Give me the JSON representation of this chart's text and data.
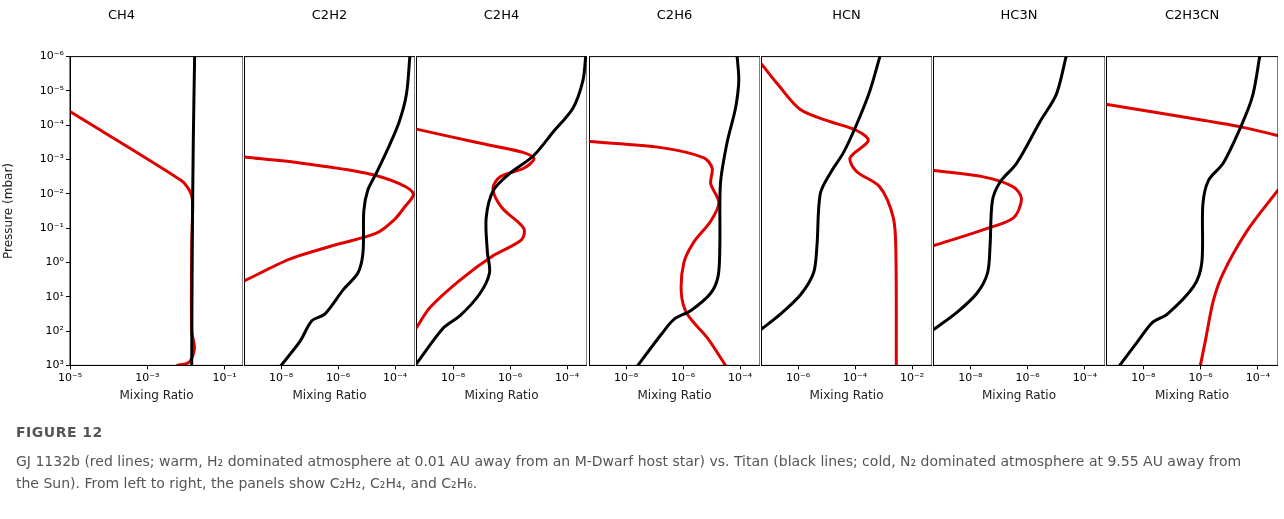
{
  "chart_data": [
    {
      "type": "line",
      "title": "CH4",
      "xlabel": "Mixing Ratio",
      "ylabel": "Pressure (mbar)",
      "log": "xy",
      "grid": false,
      "xlim": [
        1e-05,
        0.3
      ],
      "xticks": [
        {
          "value": 1e-05,
          "label": "10⁻⁵"
        },
        {
          "value": 0.001,
          "label": "10⁻³"
        },
        {
          "value": 0.1,
          "label": "10⁻¹"
        }
      ],
      "ylim": [
        1000,
        1e-06
      ],
      "yticks": [
        {
          "value": 1e-06,
          "label": "10⁻⁶"
        },
        {
          "value": 1e-05,
          "label": "10⁻⁵"
        },
        {
          "value": 0.0001,
          "label": "10⁻⁴"
        },
        {
          "value": 0.001,
          "label": "10⁻³"
        },
        {
          "value": 0.01,
          "label": "10⁻²"
        },
        {
          "value": 0.1,
          "label": "10⁻¹"
        },
        {
          "value": 1,
          "label": "10⁰"
        },
        {
          "value": 10,
          "label": "10¹"
        },
        {
          "value": 100,
          "label": "10²"
        },
        {
          "value": 1000,
          "label": "10³"
        }
      ],
      "annotations": [
        "FIGURE 12",
        "GJ 1132b (red lines; warm, H₂ dominated atmosphere at 0.01 AU away from an M-Dwarf host star) vs. Titan (black lines; cold, N₂ dominated atmosphere at 9.55 AU away from the Sun). From left to right, the panels show C₂H₂, C₂H₄, and C₂H₆."
      ],
      "series": [
        {
          "color": "#000000",
          "x": [
            0.0168,
            0.0155,
            0.0146,
            0.0141
          ],
          "values": [
            1e-06,
            0.000316,
            0.316,
            1000
          ]
        },
        {
          "color": "#e00000",
          "x": [
            1e-05,
            0.0074,
            0.0123,
            0.0148,
            0.0141,
            0.0141,
            0.0166,
            0.0123,
            0.006
          ],
          "values": [
            4e-05,
            0.004,
            0.0079,
            0.0158,
            0.316,
            100,
            316,
            794,
            1000
          ]
        }
      ]
    },
    {
      "type": "line",
      "title": "C2H2",
      "xlabel": "Mixing Ratio",
      "log": "xy",
      "grid": false,
      "tick_labels": "x",
      "xlim": [
        5e-10,
        0.0005
      ],
      "xticks": [
        {
          "value": 1e-08,
          "label": "10⁻⁸"
        },
        {
          "value": 1e-06,
          "label": "10⁻⁶"
        },
        {
          "value": 0.0001,
          "label": "10⁻⁴"
        }
      ],
      "ylim": [
        1000,
        1e-06
      ],
      "yticks": [
        {
          "value": 1e-06,
          "label": null
        },
        {
          "value": 1e-05,
          "label": null
        },
        {
          "value": 0.0001,
          "label": null
        },
        {
          "value": 0.001,
          "label": null
        },
        {
          "value": 0.01,
          "label": null
        },
        {
          "value": 0.1,
          "label": null
        },
        {
          "value": 1,
          "label": null
        },
        {
          "value": 10,
          "label": null
        },
        {
          "value": 100,
          "label": null
        },
        {
          "value": 1000,
          "label": null
        }
      ],
      "series": [
        {
          "color": "#000000",
          "x": [
            1e-08,
            4.6e-08,
            1.2e-07,
            3.4e-07,
            1.5e-06,
            5e-06,
            7.5e-06,
            8e-06,
            1.1e-05,
            2.2e-05,
            5.5e-05,
            0.00014,
            0.00025,
            0.00033
          ],
          "values": [
            1000,
            200,
            50,
            32,
            6.3,
            2,
            0.5,
            0.0316,
            0.0079,
            0.0025,
            0.0005,
            7.9e-05,
            1.26e-05,
            1e-06
          ]
        },
        {
          "color": "#e00000",
          "x": [
            5e-10,
            4.6e-08,
            9.8e-06,
            0.00014,
            0.00044,
            0.00021,
            9.5e-05,
            2.2e-05,
            6.7e-07,
            2e-08,
            5e-10
          ],
          "values": [
            0.00085,
            0.00126,
            0.0025,
            0.005,
            0.01,
            0.025,
            0.056,
            0.14,
            0.32,
            0.8,
            3.5
          ]
        }
      ]
    },
    {
      "type": "line",
      "title": "C2H4",
      "xlabel": "Mixing Ratio",
      "log": "xy",
      "grid": false,
      "tick_labels": "x",
      "xlim": [
        5e-10,
        0.0005
      ],
      "xticks": [
        {
          "value": 1e-08,
          "label": "10⁻⁸"
        },
        {
          "value": 1e-06,
          "label": "10⁻⁶"
        },
        {
          "value": 0.0001,
          "label": "10⁻⁴"
        }
      ],
      "ylim": [
        1000,
        1e-06
      ],
      "yticks": [
        {
          "value": 1e-06,
          "label": null
        },
        {
          "value": 1e-05,
          "label": null
        },
        {
          "value": 0.0001,
          "label": null
        },
        {
          "value": 0.001,
          "label": null
        },
        {
          "value": 0.01,
          "label": null
        },
        {
          "value": 0.1,
          "label": null
        },
        {
          "value": 1,
          "label": null
        },
        {
          "value": 10,
          "label": null
        },
        {
          "value": 100,
          "label": null
        },
        {
          "value": 1000,
          "label": null
        }
      ],
      "series": [
        {
          "color": "#000000",
          "x": [
            5.2e-10,
            4.7e-09,
            1.8e-08,
            8.9e-08,
            1.9e-07,
            1.6e-07,
            1.45e-07,
            2.6e-07,
            1e-06,
            6.5e-06,
            3.2e-05,
            0.00016,
            0.00036,
            0.00045
          ],
          "values": [
            890,
            79,
            35,
            7.9,
            2,
            0.5,
            0.05,
            0.0079,
            0.0025,
            0.00079,
            0.00016,
            3.2e-05,
            5e-06,
            1e-06
          ]
        },
        {
          "color": "#e00000",
          "x": [
            5.2e-10,
            6.9e-08,
            3e-06,
            6.9e-06,
            3e-06,
            4.5e-07,
            2.5e-07,
            5.1e-07,
            3e-06,
            2.5e-06,
            2.6e-07,
            1.8e-08,
            1.6e-09,
            5.2e-10
          ],
          "values": [
            0.00013,
            0.00032,
            0.00063,
            0.00095,
            0.0018,
            0.0032,
            0.007,
            0.025,
            0.1,
            0.22,
            0.63,
            3.2,
            20,
            79
          ]
        }
      ]
    },
    {
      "type": "line",
      "title": "C2H6",
      "xlabel": "Mixing Ratio",
      "log": "xy",
      "grid": false,
      "tick_labels": "x",
      "xlim": [
        5e-10,
        0.0005
      ],
      "xticks": [
        {
          "value": 1e-08,
          "label": "10⁻⁸"
        },
        {
          "value": 1e-06,
          "label": "10⁻⁶"
        },
        {
          "value": 0.0001,
          "label": "10⁻⁴"
        }
      ],
      "ylim": [
        1000,
        1e-06
      ],
      "yticks": [
        {
          "value": 1e-06,
          "label": null
        },
        {
          "value": 1e-05,
          "label": null
        },
        {
          "value": 0.0001,
          "label": null
        },
        {
          "value": 0.001,
          "label": null
        },
        {
          "value": 0.01,
          "label": null
        },
        {
          "value": 0.1,
          "label": null
        },
        {
          "value": 1,
          "label": null
        },
        {
          "value": 10,
          "label": null
        },
        {
          "value": 100,
          "label": null
        },
        {
          "value": 1000,
          "label": null
        }
      ],
      "series": [
        {
          "color": "#000000",
          "x": [
            2.6e-08,
            1.7e-07,
            4.9e-07,
            1.9e-06,
            9.3e-06,
            1.7e-05,
            1.95e-05,
            2.05e-05,
            3.5e-05,
            6.9e-05,
            9e-05,
            7.9e-05
          ],
          "values": [
            1000,
            126,
            45,
            25,
            7.9,
            2.5,
            0.32,
            0.005,
            0.00032,
            3.2e-05,
            5e-06,
            1e-06
          ]
        },
        {
          "color": "#e00000",
          "x": [
            5.5e-10,
            1.7e-07,
            5.4e-06,
            1.05e-05,
            9.3e-06,
            1.8e-05,
            9.3e-06,
            2.4e-06,
            1.07e-06,
            8.7e-07,
            1.4e-06,
            7.1e-06,
            3.1e-05
          ],
          "values": [
            0.0003,
            0.00045,
            0.00089,
            0.0018,
            0.005,
            0.018,
            0.063,
            0.25,
            1,
            7.9,
            32,
            158,
            1000
          ]
        }
      ]
    },
    {
      "type": "line",
      "title": "HCN",
      "xlabel": "Mixing Ratio",
      "log": "xy",
      "grid": false,
      "tick_labels": "x",
      "xlim": [
        5e-08,
        0.05
      ],
      "xticks": [
        {
          "value": 1e-06,
          "label": "10⁻⁶"
        },
        {
          "value": 0.0001,
          "label": "10⁻⁴"
        },
        {
          "value": 0.01,
          "label": "10⁻²"
        }
      ],
      "ylim": [
        1000,
        1e-06
      ],
      "yticks": [
        {
          "value": 1e-06,
          "label": null
        },
        {
          "value": 1e-05,
          "label": null
        },
        {
          "value": 0.0001,
          "label": null
        },
        {
          "value": 0.001,
          "label": null
        },
        {
          "value": 0.01,
          "label": null
        },
        {
          "value": 0.1,
          "label": null
        },
        {
          "value": 1,
          "label": null
        },
        {
          "value": 10,
          "label": null
        },
        {
          "value": 100,
          "label": null
        },
        {
          "value": 1000,
          "label": null
        }
      ],
      "series": [
        {
          "color": "#000000",
          "x": [
            5.1e-08,
            2.4e-07,
            1.2e-06,
            3.5e-06,
            4.6e-06,
            6e-06,
            1.35e-05,
            3.9e-05,
            0.00011,
            0.00033,
            0.00074
          ],
          "values": [
            89,
            32,
            8.9,
            2,
            0.32,
            0.01,
            0.0025,
            0.00063,
            0.0001,
            1e-05,
            1e-06
          ]
        },
        {
          "color": "#e00000",
          "x": [
            5.1e-08,
            1.9e-07,
            1.2e-06,
            1.35e-05,
            0.00011,
            0.00029,
            6.7e-05,
            0.00011,
            0.00074,
            0.0022,
            0.0027,
            0.0028
          ],
          "values": [
            1.6e-06,
            6.3e-06,
            3.5e-05,
            7.9e-05,
            0.00014,
            0.00028,
            0.00089,
            0.0022,
            0.0063,
            0.05,
            0.5,
            1000
          ]
        }
      ]
    },
    {
      "type": "line",
      "title": "HC3N",
      "xlabel": "Mixing Ratio",
      "log": "xy",
      "grid": false,
      "tick_labels": "x",
      "xlim": [
        5e-10,
        0.0005
      ],
      "xticks": [
        {
          "value": 1e-08,
          "label": "10⁻⁸"
        },
        {
          "value": 1e-06,
          "label": "10⁻⁶"
        },
        {
          "value": 0.0001,
          "label": "10⁻⁴"
        }
      ],
      "ylim": [
        1000,
        1e-06
      ],
      "yticks": [
        {
          "value": 1e-06,
          "label": null
        },
        {
          "value": 1e-05,
          "label": null
        },
        {
          "value": 0.0001,
          "label": null
        },
        {
          "value": 0.001,
          "label": null
        },
        {
          "value": 0.01,
          "label": null
        },
        {
          "value": 0.1,
          "label": null
        },
        {
          "value": 1,
          "label": null
        },
        {
          "value": 10,
          "label": null
        },
        {
          "value": 100,
          "label": null
        },
        {
          "value": 1000,
          "label": null
        }
      ],
      "series": [
        {
          "color": "#000000",
          "x": [
            5.4e-10,
            3.5e-09,
            1.7e-08,
            4e-08,
            4.9e-08,
            5.9e-08,
            1.1e-07,
            4.2e-07,
            2.7e-06,
            1e-05,
            2.2e-05
          ],
          "values": [
            89,
            28,
            7.9,
            2,
            0.32,
            0.0158,
            0.0045,
            0.00126,
            7.9e-05,
            1.26e-05,
            1e-06
          ]
        },
        {
          "color": "#e00000",
          "x": [
            5.4e-10,
            2.9e-08,
            3.2e-07,
            6.1e-07,
            3.2e-07,
            2.9e-08,
            5.4e-10
          ],
          "values": [
            0.0021,
            0.0032,
            0.0063,
            0.014,
            0.05,
            0.11,
            0.32
          ]
        }
      ]
    },
    {
      "type": "line",
      "title": "C2H3CN",
      "xlabel": "Mixing Ratio",
      "log": "xy",
      "grid": false,
      "tick_labels": "x",
      "xlim": [
        5e-10,
        0.0005
      ],
      "xticks": [
        {
          "value": 1e-08,
          "label": "10⁻⁸"
        },
        {
          "value": 1e-06,
          "label": "10⁻⁶"
        },
        {
          "value": 0.0001,
          "label": "10⁻⁴"
        }
      ],
      "ylim": [
        1000,
        1e-06
      ],
      "yticks": [
        {
          "value": 1e-06,
          "label": null
        },
        {
          "value": 1e-05,
          "label": null
        },
        {
          "value": 0.0001,
          "label": null
        },
        {
          "value": 0.001,
          "label": null
        },
        {
          "value": 0.01,
          "label": null
        },
        {
          "value": 0.1,
          "label": null
        },
        {
          "value": 1,
          "label": null
        },
        {
          "value": 10,
          "label": null
        },
        {
          "value": 100,
          "label": null
        },
        {
          "value": 1000,
          "label": null
        }
      ],
      "series": [
        {
          "color": "#000000",
          "x": [
            1.5e-09,
            6.4e-09,
            2.1e-08,
            6.9e-08,
            5.7e-07,
            1.1e-06,
            1.2e-06,
            1.9e-06,
            6.2e-06,
            3e-05,
            6.7e-05,
            0.000115
          ],
          "values": [
            1000,
            200,
            56,
            32,
            5,
            1,
            0.02,
            0.004,
            0.00126,
            7.9e-05,
            1.26e-05,
            1e-06
          ]
        },
        {
          "color": "#e00000",
          "x": [
            5.6e-10,
            2e-07,
            2.3e-05,
            0.00049
          ],
          "values": [
            2.5e-05,
            5.6e-05,
            0.00011,
            0.0002
          ]
        },
        {
          "color": "#e00000",
          "x": [
            0.00049,
            4e-05,
            6.2e-06,
            2.8e-06,
            1.45e-06,
            9.8e-07
          ],
          "values": [
            0.0079,
            0.126,
            2,
            12.6,
            200,
            1000
          ]
        }
      ]
    }
  ]
}
